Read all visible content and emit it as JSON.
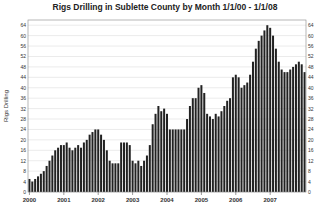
{
  "chart_data": {
    "type": "bar",
    "title": "Rigs Drilling in Sublette County by Month 1/1/00 - 1/1/08",
    "y_label": "Rigs Drilling",
    "categories": [
      "2000",
      null,
      null,
      null,
      null,
      null,
      null,
      null,
      null,
      null,
      null,
      null,
      "2001",
      null,
      null,
      null,
      null,
      null,
      null,
      null,
      null,
      null,
      null,
      null,
      "2002",
      null,
      null,
      null,
      null,
      null,
      null,
      null,
      null,
      null,
      null,
      null,
      "2003",
      null,
      null,
      null,
      null,
      null,
      null,
      null,
      null,
      null,
      null,
      null,
      "2004",
      null,
      null,
      null,
      null,
      null,
      null,
      null,
      null,
      null,
      null,
      null,
      "2005",
      null,
      null,
      null,
      null,
      null,
      null,
      null,
      null,
      null,
      null,
      null,
      "2006",
      null,
      null,
      null,
      null,
      null,
      null,
      null,
      null,
      null,
      null,
      null,
      "2007",
      null,
      null,
      null,
      null,
      null,
      null,
      null,
      null,
      null,
      null,
      null,
      null
    ],
    "values": [
      5,
      4,
      5,
      6,
      7,
      8,
      10,
      12,
      14,
      16,
      17,
      18,
      18,
      19,
      17,
      16,
      17,
      18,
      17,
      19,
      20,
      22,
      23,
      24,
      24,
      22,
      20,
      16,
      12,
      11,
      11,
      11,
      19,
      19,
      19,
      18,
      12,
      11,
      12,
      10,
      12,
      14,
      18,
      26,
      30,
      33,
      31,
      32,
      30,
      24,
      24,
      24,
      24,
      24,
      24,
      28,
      33,
      36,
      36,
      40,
      41,
      38,
      30,
      29,
      28,
      30,
      29,
      31,
      33,
      35,
      36,
      44,
      45,
      44,
      40,
      41,
      42,
      45,
      50,
      55,
      58,
      60,
      62,
      64,
      63,
      60,
      55,
      50,
      47,
      46,
      46,
      47,
      48,
      49,
      50,
      49,
      46
    ],
    "color": "#222222",
    "ylim": [
      0,
      66
    ],
    "yticks": [
      0,
      4,
      8,
      12,
      16,
      20,
      24,
      28,
      32,
      36,
      40,
      44,
      48,
      52,
      56,
      60,
      64
    ],
    "grid": true
  }
}
